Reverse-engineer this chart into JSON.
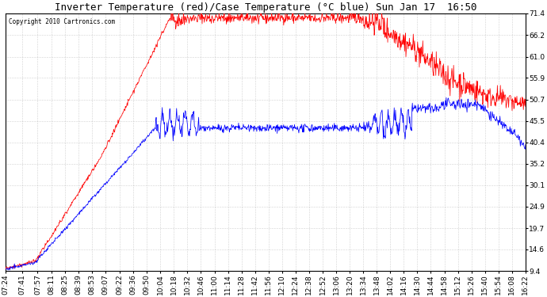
{
  "title": "Inverter Temperature (red)/Case Temperature (°C blue) Sun Jan 17  16:50",
  "copyright": "Copyright 2010 Cartronics.com",
  "y_ticks": [
    9.4,
    14.6,
    19.7,
    24.9,
    30.1,
    35.2,
    40.4,
    45.5,
    50.7,
    55.9,
    61.0,
    66.2,
    71.4
  ],
  "ylim": [
    9.4,
    71.4
  ],
  "background_color": "#ffffff",
  "plot_bg_color": "#ffffff",
  "grid_color": "#aaaaaa",
  "red_color": "#ff0000",
  "blue_color": "#0000ff",
  "x_labels": [
    "07:24",
    "07:41",
    "07:57",
    "08:11",
    "08:25",
    "08:39",
    "08:53",
    "09:07",
    "09:22",
    "09:36",
    "09:50",
    "10:04",
    "10:18",
    "10:32",
    "10:46",
    "11:00",
    "11:14",
    "11:28",
    "11:42",
    "11:56",
    "12:10",
    "12:24",
    "12:38",
    "12:52",
    "13:06",
    "13:20",
    "13:34",
    "13:48",
    "14:02",
    "14:16",
    "14:30",
    "14:44",
    "14:58",
    "15:12",
    "15:26",
    "15:40",
    "15:54",
    "16:08",
    "16:22"
  ],
  "title_fontsize": 9,
  "tick_fontsize": 6.5,
  "copyright_fontsize": 5.5
}
